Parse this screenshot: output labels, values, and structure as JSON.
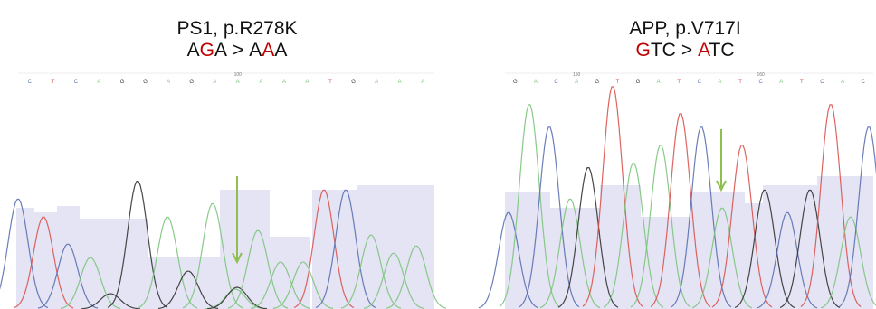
{
  "panels": [
    {
      "gene_variant": "PS1, p.R278K",
      "reference_codon": [
        "A",
        "G",
        "A"
      ],
      "separator": ">",
      "alternate_codon": [
        "A",
        "A",
        "A"
      ],
      "bases": [
        "C",
        "T",
        "C",
        "A",
        "G",
        "G",
        "A",
        "G",
        "A",
        "A",
        "A",
        "A",
        "A",
        "T",
        "G",
        "A",
        "A",
        "A"
      ],
      "position_labels": [
        "100"
      ]
    },
    {
      "gene_variant": "APP, p.V717I",
      "reference_codon": [
        "G",
        "T",
        "C"
      ],
      "separator": ">",
      "alternate_codon": [
        "A",
        "T",
        "C"
      ],
      "bases": [
        "G",
        "A",
        "C",
        "A",
        "G",
        "T",
        "G",
        "A",
        "T",
        "C",
        "A",
        "T",
        "C",
        "A",
        "T",
        "C",
        "A",
        "C"
      ],
      "position_labels": [
        "150",
        "160"
      ]
    }
  ]
}
